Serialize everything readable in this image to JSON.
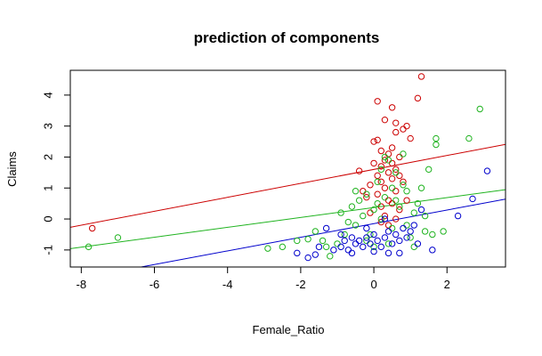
{
  "chart_data": {
    "type": "scatter",
    "title": "prediction of components",
    "xlabel": "Female_Ratio",
    "ylabel": "Claims",
    "xlim": [
      -8.3,
      3.6
    ],
    "ylim": [
      -1.55,
      4.8
    ],
    "xticks": [
      -8,
      -6,
      -4,
      -2,
      0,
      2
    ],
    "yticks": [
      -1,
      0,
      1,
      2,
      3,
      4
    ],
    "grid": false,
    "colors": {
      "red": "#cc0000",
      "green": "#1fb31f",
      "blue": "#0000cc"
    },
    "series": [
      {
        "color": "#cc0000",
        "line": {
          "intercept": 1.6,
          "slope": 0.225
        },
        "points": [
          [
            -7.7,
            -0.3
          ],
          [
            0.1,
            3.8
          ],
          [
            0.5,
            3.6
          ],
          [
            1.3,
            4.6
          ],
          [
            1.2,
            3.9
          ],
          [
            0.3,
            3.2
          ],
          [
            0.6,
            3.1
          ],
          [
            0.9,
            3.0
          ],
          [
            0.8,
            2.9
          ],
          [
            0.6,
            2.8
          ],
          [
            1.0,
            2.6
          ],
          [
            0.0,
            2.5
          ],
          [
            0.1,
            2.55
          ],
          [
            0.5,
            2.3
          ],
          [
            0.2,
            2.2
          ],
          [
            0.4,
            2.1
          ],
          [
            0.7,
            2.0
          ],
          [
            0.3,
            1.9
          ],
          [
            0.5,
            1.8
          ],
          [
            0.2,
            1.7
          ],
          [
            0.6,
            1.6
          ],
          [
            -0.4,
            1.55
          ],
          [
            0.4,
            1.5
          ],
          [
            0.1,
            1.4
          ],
          [
            0.5,
            1.3
          ],
          [
            0.2,
            1.2
          ],
          [
            -0.1,
            1.1
          ],
          [
            0.3,
            1.0
          ],
          [
            0.6,
            0.9
          ],
          [
            0.1,
            0.8
          ],
          [
            -0.2,
            0.7
          ],
          [
            0.4,
            0.6
          ],
          [
            0.5,
            0.5
          ],
          [
            0.2,
            0.4
          ],
          [
            0.7,
            0.3
          ],
          [
            -0.1,
            0.2
          ],
          [
            0.3,
            0.1
          ],
          [
            0.6,
            0.0
          ],
          [
            0.2,
            -0.1
          ],
          [
            0.4,
            -0.2
          ],
          [
            0.8,
            1.2
          ],
          [
            -0.3,
            0.9
          ],
          [
            0.0,
            1.8
          ],
          [
            0.7,
            1.4
          ],
          [
            0.9,
            0.6
          ]
        ]
      },
      {
        "color": "#1fb31f",
        "line": {
          "intercept": 0.37,
          "slope": 0.16
        },
        "points": [
          [
            -7.8,
            -0.9
          ],
          [
            -7.0,
            -0.6
          ],
          [
            -2.9,
            -0.95
          ],
          [
            -2.5,
            -0.9
          ],
          [
            -1.8,
            -0.65
          ],
          [
            -1.4,
            -0.7
          ],
          [
            -1.2,
            -1.2
          ],
          [
            -0.8,
            -0.5
          ],
          [
            -0.6,
            0.4
          ],
          [
            -0.5,
            -0.2
          ],
          [
            -0.4,
            0.6
          ],
          [
            -0.3,
            0.1
          ],
          [
            -0.2,
            0.8
          ],
          [
            -0.1,
            -0.5
          ],
          [
            0.0,
            0.3
          ],
          [
            0.1,
            1.2
          ],
          [
            0.2,
            0.0
          ],
          [
            0.3,
            0.7
          ],
          [
            0.4,
            1.9
          ],
          [
            0.5,
            -0.3
          ],
          [
            0.6,
            1.5
          ],
          [
            0.7,
            0.4
          ],
          [
            0.8,
            2.1
          ],
          [
            0.9,
            0.9
          ],
          [
            1.0,
            -0.6
          ],
          [
            1.1,
            0.2
          ],
          [
            1.2,
            0.5
          ],
          [
            1.4,
            -0.4
          ],
          [
            1.6,
            -0.5
          ],
          [
            1.7,
            2.4
          ],
          [
            1.7,
            2.6
          ],
          [
            2.6,
            2.6
          ],
          [
            2.9,
            3.55
          ],
          [
            1.5,
            1.6
          ],
          [
            1.3,
            1.0
          ],
          [
            -1.0,
            -0.8
          ],
          [
            -0.7,
            -0.1
          ],
          [
            0.2,
            1.6
          ],
          [
            0.5,
            1.0
          ],
          [
            0.9,
            -0.2
          ],
          [
            -1.6,
            -0.4
          ],
          [
            -0.9,
            0.2
          ],
          [
            0.0,
            -0.9
          ],
          [
            0.6,
            0.6
          ],
          [
            1.1,
            -0.9
          ],
          [
            -2.1,
            -0.7
          ],
          [
            -1.3,
            -0.9
          ],
          [
            0.3,
            2.0
          ],
          [
            0.8,
            1.1
          ],
          [
            1.4,
            0.1
          ],
          [
            -0.2,
            -0.7
          ],
          [
            0.4,
            -0.8
          ],
          [
            1.9,
            -0.4
          ],
          [
            0.1,
            0.5
          ],
          [
            -0.5,
            0.9
          ]
        ]
      },
      {
        "color": "#0000cc",
        "line": {
          "intercept": -0.15,
          "slope": 0.22
        },
        "points": [
          [
            -2.1,
            -1.1
          ],
          [
            -1.8,
            -1.25
          ],
          [
            -1.5,
            -0.9
          ],
          [
            -1.3,
            -0.3
          ],
          [
            -1.1,
            -1.0
          ],
          [
            -0.9,
            -0.9
          ],
          [
            -0.8,
            -0.7
          ],
          [
            -0.7,
            -1.0
          ],
          [
            -0.6,
            -0.6
          ],
          [
            -0.5,
            -0.8
          ],
          [
            -0.4,
            -0.7
          ],
          [
            -0.3,
            -0.9
          ],
          [
            -0.2,
            -0.6
          ],
          [
            -0.1,
            -0.8
          ],
          [
            0.0,
            -0.5
          ],
          [
            0.1,
            -0.7
          ],
          [
            0.2,
            -0.9
          ],
          [
            0.3,
            -0.6
          ],
          [
            0.4,
            -0.4
          ],
          [
            0.5,
            -0.8
          ],
          [
            0.6,
            -0.5
          ],
          [
            0.7,
            -0.7
          ],
          [
            0.8,
            -0.3
          ],
          [
            0.9,
            -0.6
          ],
          [
            1.0,
            -0.4
          ],
          [
            1.2,
            -0.8
          ],
          [
            1.3,
            0.3
          ],
          [
            1.6,
            -1.0
          ],
          [
            2.3,
            0.1
          ],
          [
            2.7,
            0.65
          ],
          [
            3.1,
            1.55
          ],
          [
            -0.6,
            -1.1
          ],
          [
            0.0,
            -1.05
          ],
          [
            0.4,
            -1.1
          ],
          [
            -0.2,
            -0.3
          ],
          [
            0.3,
            0.0
          ],
          [
            0.7,
            -1.1
          ],
          [
            1.1,
            -0.2
          ],
          [
            -0.9,
            -0.5
          ],
          [
            -1.6,
            -1.15
          ]
        ]
      }
    ]
  }
}
